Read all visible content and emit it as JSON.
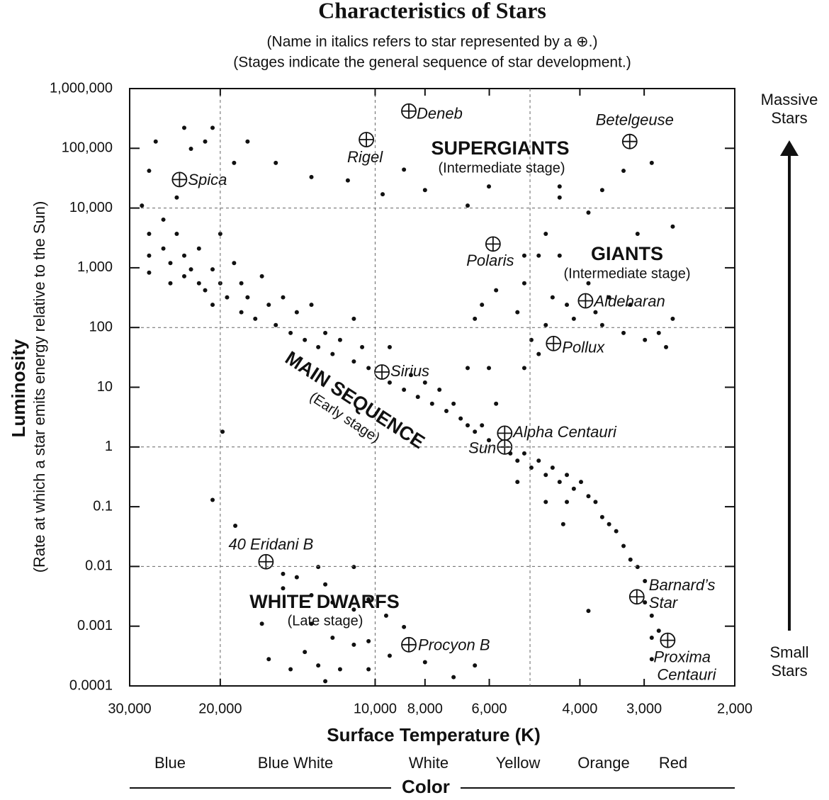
{
  "chart_data": {
    "type": "scatter",
    "title": "Characteristics of Stars",
    "subtitles": [
      "(Name in italics refers to star represented by a ⊕.)",
      "(Stages indicate the general sequence of star development.)"
    ],
    "x_label": "Surface Temperature (K)",
    "y_label": "Luminosity",
    "y_sublabel": "(Rate at which a star emits energy relative to the Sun)",
    "x_scale": "log",
    "y_scale": "log",
    "xlim": [
      30000,
      2000
    ],
    "ylim": [
      0.0001,
      1000000
    ],
    "xticks": [
      {
        "value": 30000,
        "label": "30,000"
      },
      {
        "value": 20000,
        "label": "20,000"
      },
      {
        "value": 10000,
        "label": "10,000"
      },
      {
        "value": 8000,
        "label": "8,000"
      },
      {
        "value": 6000,
        "label": "6,000"
      },
      {
        "value": 4000,
        "label": "4,000"
      },
      {
        "value": 3000,
        "label": "3,000"
      },
      {
        "value": 2000,
        "label": "2,000"
      }
    ],
    "yticks": [
      {
        "value": 1000000,
        "label": "1,000,000"
      },
      {
        "value": 100000,
        "label": "100,000"
      },
      {
        "value": 10000,
        "label": "10,000"
      },
      {
        "value": 1000,
        "label": "1,000"
      },
      100,
      10,
      1,
      0.1,
      0.01,
      0.001,
      0.0001
    ],
    "x_grid": [
      20000,
      10000,
      5000
    ],
    "y_grid": [
      10000,
      100,
      1,
      0.01
    ],
    "color": "#111111",
    "points": {
      "x": [
        23500,
        20700,
        26700,
        22800,
        21400,
        17700,
        18800,
        27500,
        24300,
        28400,
        15600,
        13300,
        11300,
        8790,
        9670,
        8000,
        6010,
        6610,
        4380,
        4380,
        3620,
        3290,
        2900,
        3850,
        27500,
        27500,
        27500,
        25800,
        25800,
        25000,
        25000,
        24300,
        23500,
        23500,
        22800,
        22000,
        22000,
        21400,
        20700,
        20700,
        20000,
        20000,
        19400,
        18800,
        18200,
        18200,
        17700,
        17100,
        16600,
        16100,
        15600,
        15100,
        14600,
        14200,
        13700,
        13300,
        12900,
        12500,
        12100,
        11700,
        11000,
        11000,
        10600,
        10300,
        9370,
        9370,
        8790,
        8520,
        8260,
        8000,
        7750,
        7500,
        7270,
        7040,
        6820,
        6610,
        6400,
        6200,
        6010,
        5460,
        5290,
        5130,
        4970,
        4810,
        4660,
        4520,
        4380,
        4240,
        4110,
        3980,
        3850,
        3730,
        3620,
        3510,
        3400,
        3290,
        3190,
        3090,
        2990,
        2990,
        2900,
        2900,
        2810,
        2900,
        5290,
        4660,
        4240,
        4310,
        5820,
        6010,
        6610,
        5130,
        4810,
        6200,
        5820,
        5130,
        5130,
        4810,
        4660,
        4380,
        4520,
        4240,
        4110,
        3730,
        3620,
        3290,
        3190,
        2990,
        2810,
        2720,
        2640,
        3090,
        2640,
        3850,
        3510,
        4970,
        4660,
        5290,
        6400,
        19800,
        20700,
        18700,
        3850,
        15100,
        15100,
        14200,
        12900,
        12500,
        11000,
        13300,
        12100,
        11000,
        10300,
        9520,
        8790,
        16600,
        13300,
        12100,
        10300,
        13700,
        11000,
        9370,
        16100,
        14600,
        12900,
        11700,
        10300,
        12500,
        8000,
        7040,
        6400
      ],
      "y": [
        220000,
        220000,
        130000,
        98000,
        130000,
        130000,
        57000,
        42000,
        15000,
        11000,
        57000,
        33000,
        29000,
        44000,
        17000,
        20000,
        23000,
        11000,
        23000,
        15000,
        20000,
        42000,
        57000,
        8400,
        3700,
        1600,
        830,
        6400,
        2100,
        1200,
        550,
        3700,
        1600,
        720,
        940,
        2100,
        550,
        420,
        940,
        240,
        3700,
        550,
        320,
        1200,
        550,
        180,
        320,
        140,
        720,
        240,
        110,
        320,
        81,
        180,
        62,
        240,
        47,
        81,
        36,
        62,
        140,
        27,
        47,
        21,
        47,
        12,
        9.1,
        16,
        6.9,
        12,
        5.3,
        9.1,
        4,
        5.3,
        3,
        2.3,
        1.8,
        2.3,
        1.3,
        0.78,
        0.59,
        0.78,
        0.45,
        0.59,
        0.34,
        0.45,
        0.26,
        0.34,
        0.2,
        0.26,
        0.15,
        0.12,
        0.067,
        0.051,
        0.039,
        0.022,
        0.013,
        0.0098,
        0.0057,
        0.0025,
        0.0015,
        0.00064,
        0.00084,
        0.00028,
        0.26,
        0.12,
        0.12,
        0.051,
        5.3,
        21,
        21,
        21,
        36,
        240,
        420,
        550,
        1600,
        1600,
        3700,
        1600,
        320,
        240,
        140,
        180,
        110,
        81,
        240,
        62,
        81,
        47,
        140,
        3700,
        4900,
        550,
        320,
        62,
        110,
        180,
        140,
        1.8,
        0.13,
        0.048,
        0.0018,
        0.0075,
        0.0043,
        0.0066,
        0.0098,
        0.005,
        0.0098,
        0.0033,
        0.0025,
        0.0019,
        0.0028,
        0.0015,
        0.00097,
        0.0011,
        0.0011,
        0.00064,
        0.00056,
        0.00037,
        0.00049,
        0.00032,
        0.00028,
        0.00019,
        0.00022,
        0.00019,
        0.00019,
        0.00012,
        0.00025,
        0.00014,
        0.00022
      ]
    },
    "stars": [
      {
        "label_lines": [
          "Spica"
        ],
        "x": 24000,
        "y": 30000
      },
      {
        "label_lines": [
          "Rigel"
        ],
        "x": 10400,
        "y": 140000
      },
      {
        "label_lines": [
          "Deneb"
        ],
        "x": 8600,
        "y": 420000
      },
      {
        "label_lines": [
          "Betelgeuse"
        ],
        "x": 3200,
        "y": 130000
      },
      {
        "label_lines": [
          "Polaris"
        ],
        "x": 5900,
        "y": 2500
      },
      {
        "label_lines": [
          "Aldebaran"
        ],
        "x": 3900,
        "y": 280
      },
      {
        "label_lines": [
          "Pollux"
        ],
        "x": 4500,
        "y": 54
      },
      {
        "label_lines": [
          "Sirius"
        ],
        "x": 9700,
        "y": 18
      },
      {
        "label_lines": [
          "Alpha Centauri"
        ],
        "x": 5600,
        "y": 1.7
      },
      {
        "label_lines": [
          "Sun"
        ],
        "x": 5600,
        "y": 1
      },
      {
        "label_lines": [
          "40 Eridani B"
        ],
        "x": 16300,
        "y": 0.012
      },
      {
        "label_lines": [
          "Procyon B"
        ],
        "x": 8600,
        "y": 0.00049
      },
      {
        "label_lines": [
          "Barnard’s",
          "Star"
        ],
        "x": 3100,
        "y": 0.0031
      },
      {
        "label_lines": [
          "Proxima",
          "Centauri"
        ],
        "x": 2700,
        "y": 0.00058
      }
    ],
    "regions": [
      {
        "name": "SUPERGIANTS",
        "stage": "(Intermediate stage)"
      },
      {
        "name": "GIANTS",
        "stage": "(Intermediate stage)"
      },
      {
        "name": "MAIN SEQUENCE",
        "stage": "(Early stage)"
      },
      {
        "name": "WHITE DWARFS",
        "stage": "(Late stage)"
      }
    ],
    "color_scale": {
      "label": "Color",
      "names": [
        "Blue",
        "Blue White",
        "White",
        "Yellow",
        "Orange",
        "Red"
      ]
    },
    "size_arrow": {
      "top": [
        "Massive",
        "Stars"
      ],
      "bottom": [
        "Small",
        "Stars"
      ]
    }
  }
}
